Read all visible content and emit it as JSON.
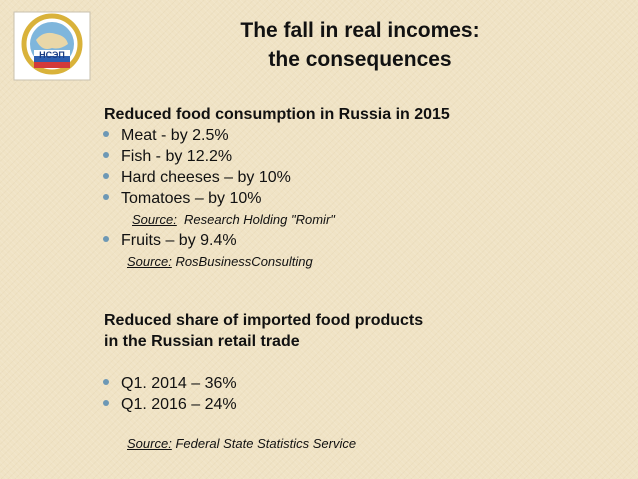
{
  "logo": {
    "text": "НСЭП"
  },
  "title": {
    "line1": "The fall in real incomes:",
    "line2": "the consequences"
  },
  "section1": {
    "heading": "Reduced food consumption in Russia in 2015",
    "bullets": [
      "Meat - by 2.5%",
      "Fish - by 12.2%",
      "Hard cheeses – by 10%",
      "Tomatoes – by 10%"
    ],
    "source1": {
      "label": "Source:",
      "text": "Research Holding \"Romir\""
    },
    "bullet5": "Fruits – by 9.4%",
    "source2": {
      "label": "Source:",
      "text": "RosBusinessConsulting"
    }
  },
  "section2": {
    "heading_line1": "Reduced share of imported food  products",
    "heading_line2": "in the Russian retail trade",
    "bullets": [
      "Q1. 2014 – 36%",
      "Q1. 2016 – 24%"
    ],
    "source": {
      "label": "Source:",
      "text": "Federal State Statistics Service"
    }
  },
  "colors": {
    "background": "#f0e3c5",
    "bullet": "#6d98b5"
  }
}
